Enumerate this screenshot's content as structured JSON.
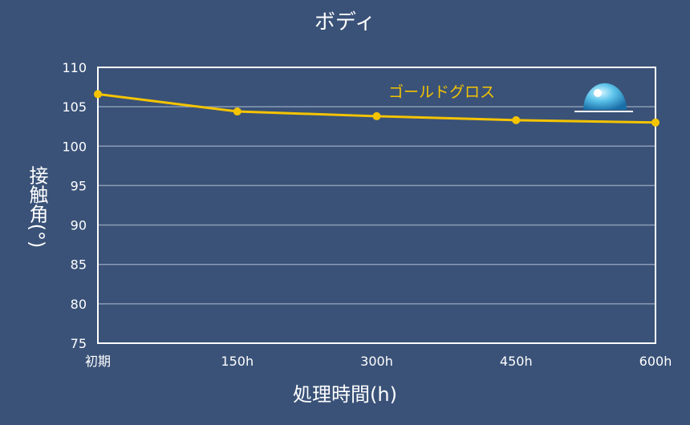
{
  "chart_data": {
    "type": "line",
    "title": "ボディ",
    "xlabel": "処理時間(h)",
    "ylabel": "接触角(°)",
    "categories": [
      "初期",
      "150h",
      "300h",
      "450h",
      "600h"
    ],
    "ylim": [
      75,
      110
    ],
    "yticks": [
      75,
      80,
      85,
      90,
      95,
      100,
      105,
      110
    ],
    "grid": true,
    "series": [
      {
        "name": "ゴールドグロス",
        "values": [
          106.6,
          104.4,
          103.8,
          103.3,
          103.0
        ]
      }
    ],
    "colors": {
      "background": "#3a5278",
      "plot_background": "#3a5278",
      "gridline": "#8a9bb5",
      "axis": "#ffffff",
      "series": "#f5c400"
    },
    "annotation_icon": "water-droplet-icon"
  }
}
